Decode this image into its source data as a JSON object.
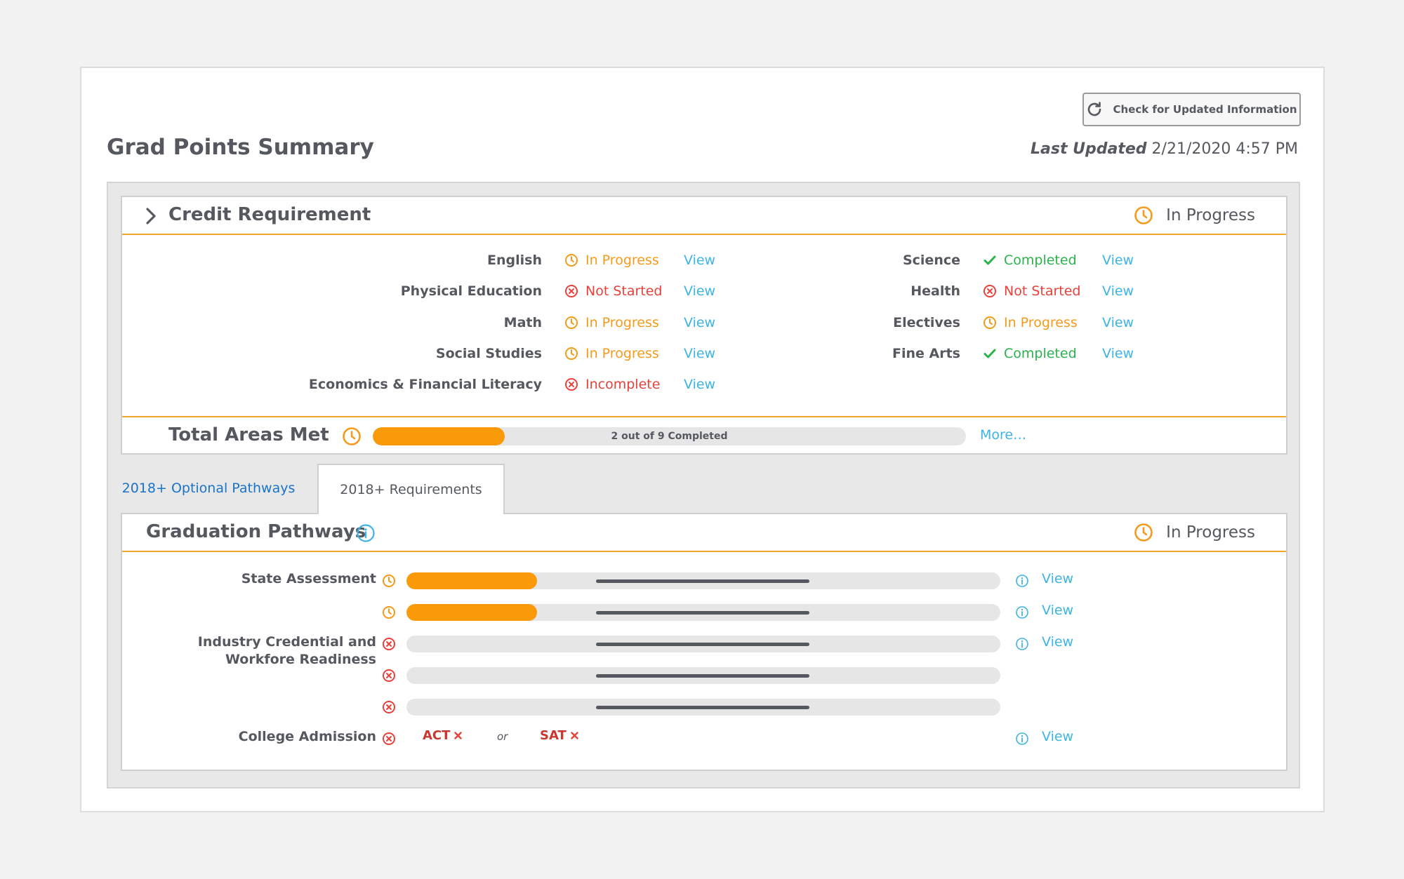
{
  "header": {
    "refresh_label": "Check for Updated Information",
    "title": "Grad Points Summary",
    "last_updated_label": "Last Updated",
    "last_updated_value": "2/21/2020 4:57 PM"
  },
  "credit": {
    "title": "Credit Requirement",
    "status": "In Progress",
    "left": [
      {
        "label": "English",
        "status": "In Progress",
        "state": "progress",
        "view": "View"
      },
      {
        "label": "Physical Education",
        "status": "Not Started",
        "state": "notstarted",
        "view": "View"
      },
      {
        "label": "Math",
        "status": "In Progress",
        "state": "progress",
        "view": "View"
      },
      {
        "label": "Social Studies",
        "status": "In Progress",
        "state": "progress",
        "view": "View"
      },
      {
        "label": "Economics & Financial Literacy",
        "status": "Incomplete",
        "state": "notstarted",
        "view": "View"
      }
    ],
    "right": [
      {
        "label": "Science",
        "status": "Completed",
        "state": "completed",
        "view": "View"
      },
      {
        "label": "Health",
        "status": "Not Started",
        "state": "notstarted",
        "view": "View"
      },
      {
        "label": "Electives",
        "status": "In Progress",
        "state": "progress",
        "view": "View"
      },
      {
        "label": "Fine Arts",
        "status": "Completed",
        "state": "completed",
        "view": "View"
      }
    ],
    "total": {
      "label": "Total Areas Met",
      "progress_text": "2 out of 9 Completed",
      "completed": 2,
      "total": 9,
      "more": "More…"
    }
  },
  "tabs": {
    "optional": "2018+ Optional Pathways",
    "requirements": "2018+ Requirements"
  },
  "pathways": {
    "title": "Graduation Pathways",
    "status": "In Progress",
    "view": "View",
    "state_assessment": "State Assessment",
    "industry_line1": "Industry Credential and",
    "industry_line2": "Workfore Readiness",
    "college": "College Admission",
    "bars": [
      0.22,
      0.22,
      0,
      0,
      0
    ],
    "act": "ACT",
    "or": "or",
    "sat": "SAT"
  },
  "colors": {
    "progress": "#f59a1b",
    "notstarted": "#e8413a",
    "completed": "#2bb24c",
    "link": "#3db4e6",
    "bar_fill": "#fb9a09"
  }
}
